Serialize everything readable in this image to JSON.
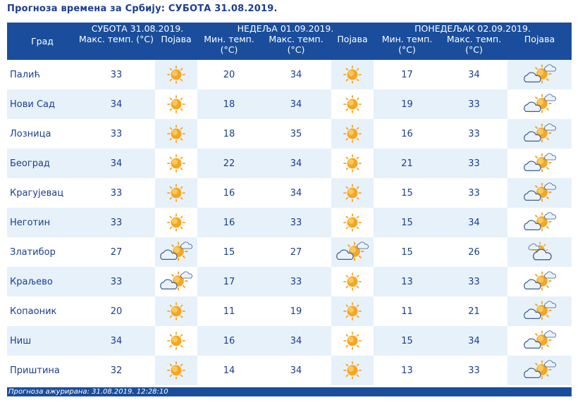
{
  "title": "Прогноза времена за Србију: СУБОТА  31.08.2019.",
  "header": {
    "city_label": "Град",
    "days": [
      {
        "label": "СУБОТА  31.08.2019.",
        "cols": [
          "Макс. темп. (°C)",
          "Појава"
        ]
      },
      {
        "label": "НЕДЕЉА  01.09.2019.",
        "cols": [
          "Мин. темп. (°C)",
          "Макс. темп. (°C)",
          "Појава"
        ]
      },
      {
        "label": "ПОНЕДЕЉАК  02.09.2019.",
        "cols": [
          "Мин. темп. (°C)",
          "Макс. темп. (°C)",
          "Појава"
        ]
      }
    ]
  },
  "rows": [
    {
      "city": "Палић",
      "d1_max": "33",
      "d1_icon": "sun-icon",
      "d2_min": "20",
      "d2_max": "34",
      "d2_icon": "sun-icon",
      "d3_min": "17",
      "d3_max": "34",
      "d3_icon": "partly-cloudy-icon"
    },
    {
      "city": "Нови Сад",
      "d1_max": "34",
      "d1_icon": "sun-icon",
      "d2_min": "18",
      "d2_max": "34",
      "d2_icon": "sun-icon",
      "d3_min": "19",
      "d3_max": "33",
      "d3_icon": "partly-cloudy-icon"
    },
    {
      "city": "Лозница",
      "d1_max": "33",
      "d1_icon": "sun-icon",
      "d2_min": "18",
      "d2_max": "35",
      "d2_icon": "sun-icon",
      "d3_min": "16",
      "d3_max": "33",
      "d3_icon": "partly-cloudy-icon"
    },
    {
      "city": "Београд",
      "d1_max": "34",
      "d1_icon": "sun-icon",
      "d2_min": "22",
      "d2_max": "34",
      "d2_icon": "sun-icon",
      "d3_min": "21",
      "d3_max": "33",
      "d3_icon": "partly-cloudy-icon"
    },
    {
      "city": "Крагујевац",
      "d1_max": "33",
      "d1_icon": "sun-icon",
      "d2_min": "16",
      "d2_max": "34",
      "d2_icon": "sun-icon",
      "d3_min": "15",
      "d3_max": "33",
      "d3_icon": "partly-cloudy-icon"
    },
    {
      "city": "Неготин",
      "d1_max": "33",
      "d1_icon": "sun-icon",
      "d2_min": "16",
      "d2_max": "33",
      "d2_icon": "sun-icon",
      "d3_min": "15",
      "d3_max": "34",
      "d3_icon": "partly-cloudy-icon"
    },
    {
      "city": "Златибор",
      "d1_max": "27",
      "d1_icon": "partly-cloudy-icon",
      "d2_min": "15",
      "d2_max": "27",
      "d2_icon": "partly-cloudy-icon",
      "d3_min": "15",
      "d3_max": "26",
      "d3_icon": "cloudy-sun-icon"
    },
    {
      "city": "Краљево",
      "d1_max": "33",
      "d1_icon": "partly-cloudy-icon",
      "d2_min": "17",
      "d2_max": "33",
      "d2_icon": "sun-icon",
      "d3_min": "13",
      "d3_max": "33",
      "d3_icon": "partly-cloudy-icon"
    },
    {
      "city": "Копаоник",
      "d1_max": "20",
      "d1_icon": "sun-icon",
      "d2_min": "11",
      "d2_max": "19",
      "d2_icon": "sun-icon",
      "d3_min": "11",
      "d3_max": "21",
      "d3_icon": "partly-cloudy-icon"
    },
    {
      "city": "Ниш",
      "d1_max": "34",
      "d1_icon": "sun-icon",
      "d2_min": "16",
      "d2_max": "34",
      "d2_icon": "sun-icon",
      "d3_min": "15",
      "d3_max": "34",
      "d3_icon": "partly-cloudy-icon"
    },
    {
      "city": "Приштина",
      "d1_max": "32",
      "d1_icon": "sun-icon",
      "d2_min": "14",
      "d2_max": "34",
      "d2_icon": "sun-icon",
      "d3_min": "13",
      "d3_max": "33",
      "d3_icon": "partly-cloudy-icon"
    }
  ],
  "footer": "Прогноза ажурирана:   31.08.2019. 12:28:10",
  "colors": {
    "header_bg": "#1a4e9c",
    "text": "#1b3f91",
    "stripe": "#e7f1fa",
    "sun": "#f5a623"
  }
}
